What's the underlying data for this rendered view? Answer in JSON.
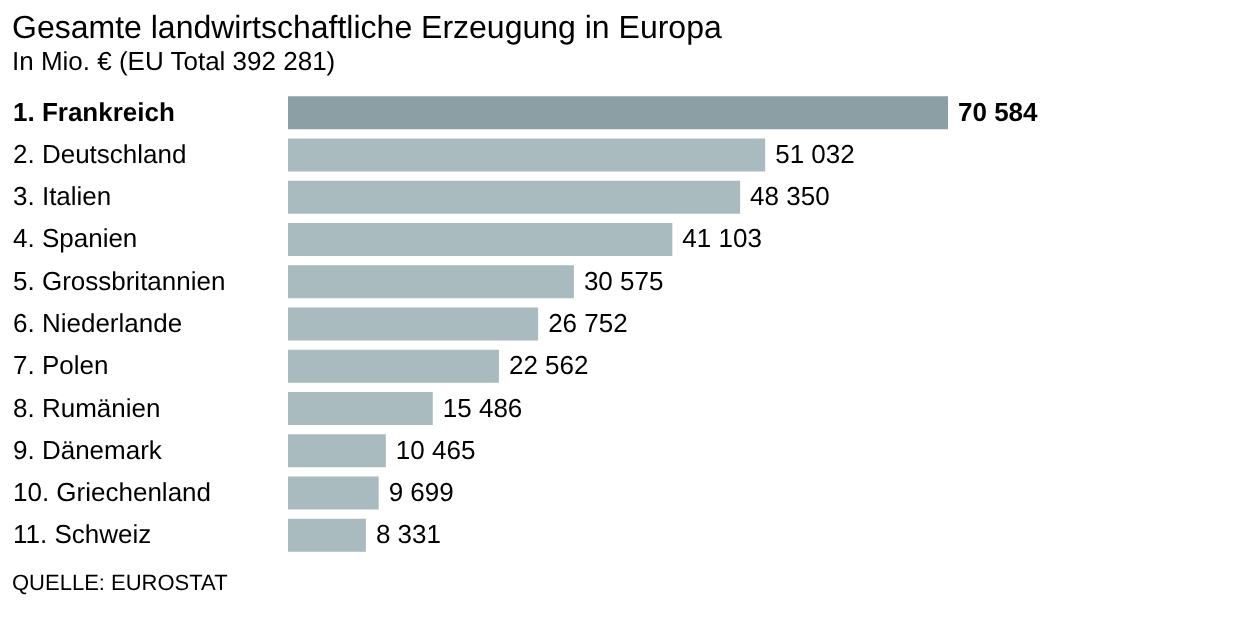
{
  "chart_data": {
    "type": "bar",
    "orientation": "horizontal",
    "title": "Gesamte landwirtschaftliche Erzeugung in Europa",
    "subtitle": "In Mio. € (EU Total 392 281)",
    "categories": [
      "1. Frankreich",
      "2. Deutschland",
      "3. Italien",
      "4. Spanien",
      "5. Grossbritannien",
      "6. Niederlande",
      "7. Polen",
      "8. Rumänien",
      "9. Dänemark",
      "10. Griechenland",
      "11. Schweiz"
    ],
    "values": [
      70584,
      51032,
      48350,
      41103,
      30575,
      26752,
      22562,
      15486,
      10465,
      9699,
      8331
    ],
    "value_labels": [
      "70 584",
      "51 032",
      "48 350",
      "41 103",
      "30 575",
      "26 752",
      "22 562",
      "15 486",
      "10 465",
      "9 699",
      "8 331"
    ],
    "colors": [
      "#8b9fa4",
      "#aabbbf",
      "#aabbbf",
      "#aabbbf",
      "#aabbbf",
      "#aabbbf",
      "#aabbbf",
      "#aabbbf",
      "#aabbbf",
      "#aabbbf",
      "#aabbbf"
    ],
    "tick_labels": "y",
    "annotations": [
      "QUELLE: EUROSTAT"
    ]
  }
}
